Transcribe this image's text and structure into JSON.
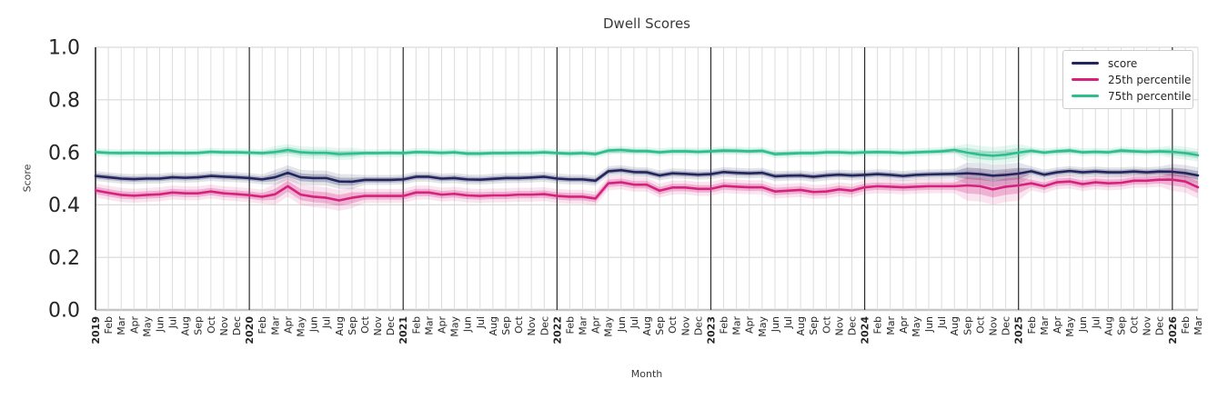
{
  "figure": {
    "title": "Dwell Scores",
    "xlabel": "Month",
    "ylabel": "Score"
  },
  "chart_data": {
    "type": "line",
    "title": "Dwell Scores",
    "xlabel": "Month",
    "ylabel": "Score",
    "ylim": [
      0.0,
      1.0
    ],
    "yticks": [
      0.0,
      0.2,
      0.4,
      0.6,
      0.8,
      1.0
    ],
    "ytick_labels": [
      "0.0",
      "0.2",
      "0.4",
      "0.6",
      "0.8",
      "1.0"
    ],
    "grid": true,
    "legend_position": "upper right",
    "x_tick_labels": [
      "2019",
      "Feb",
      "Mar",
      "Apr",
      "May",
      "Jun",
      "Jul",
      "Aug",
      "Sep",
      "Oct",
      "Nov",
      "Dec",
      "2020",
      "Feb",
      "Mar",
      "Apr",
      "May",
      "Jun",
      "Jul",
      "Aug",
      "Sep",
      "Oct",
      "Nov",
      "Dec",
      "2021",
      "Feb",
      "Mar",
      "Apr",
      "May",
      "Jun",
      "Jul",
      "Aug",
      "Sep",
      "Oct",
      "Nov",
      "Dec",
      "2022",
      "Feb",
      "Mar",
      "Apr",
      "May",
      "Jun",
      "Jul",
      "Aug",
      "Sep",
      "Oct",
      "Nov",
      "Dec",
      "2023",
      "Feb",
      "Mar",
      "Apr",
      "May",
      "Jun",
      "Jul",
      "Aug",
      "Sep",
      "Oct",
      "Nov",
      "Dec",
      "2024",
      "Feb",
      "Mar",
      "Apr",
      "May",
      "Jun",
      "Jul",
      "Aug",
      "Sep",
      "Oct",
      "Nov",
      "Dec",
      "2025",
      "Feb",
      "Mar",
      "Apr",
      "May",
      "Jun",
      "Jul",
      "Aug",
      "Sep",
      "Oct",
      "Nov",
      "Dec",
      "2026",
      "Feb",
      "Mar"
    ],
    "year_tick_indices": [
      0,
      12,
      24,
      36,
      48,
      60,
      72,
      84
    ],
    "series": [
      {
        "name": "score",
        "color": "#22265c",
        "band_halfwidth": 0.01,
        "values": [
          0.51,
          0.505,
          0.5,
          0.498,
          0.5,
          0.5,
          0.505,
          0.503,
          0.505,
          0.51,
          0.507,
          0.505,
          0.502,
          0.497,
          0.505,
          0.522,
          0.505,
          0.502,
          0.502,
          0.489,
          0.488,
          0.495,
          0.495,
          0.495,
          0.497,
          0.507,
          0.507,
          0.5,
          0.502,
          0.497,
          0.496,
          0.499,
          0.502,
          0.502,
          0.504,
          0.507,
          0.5,
          0.497,
          0.497,
          0.492,
          0.528,
          0.532,
          0.525,
          0.524,
          0.512,
          0.52,
          0.518,
          0.515,
          0.517,
          0.525,
          0.522,
          0.52,
          0.522,
          0.509,
          0.511,
          0.512,
          0.507,
          0.512,
          0.515,
          0.512,
          0.514,
          0.517,
          0.514,
          0.51,
          0.514,
          0.516,
          0.517,
          0.518,
          0.52,
          0.517,
          0.511,
          0.514,
          0.519,
          0.528,
          0.515,
          0.524,
          0.529,
          0.524,
          0.527,
          0.524,
          0.524,
          0.527,
          0.524,
          0.527,
          0.526,
          0.521,
          0.512
        ]
      },
      {
        "name": "25th percentile",
        "color": "#d6217e",
        "band_halfwidth": 0.014,
        "values": [
          0.455,
          0.446,
          0.438,
          0.435,
          0.438,
          0.44,
          0.447,
          0.444,
          0.444,
          0.451,
          0.444,
          0.441,
          0.437,
          0.431,
          0.44,
          0.471,
          0.439,
          0.431,
          0.427,
          0.417,
          0.427,
          0.434,
          0.434,
          0.434,
          0.434,
          0.447,
          0.447,
          0.439,
          0.442,
          0.436,
          0.434,
          0.436,
          0.436,
          0.439,
          0.439,
          0.441,
          0.434,
          0.431,
          0.431,
          0.424,
          0.482,
          0.486,
          0.477,
          0.477,
          0.454,
          0.466,
          0.466,
          0.461,
          0.461,
          0.472,
          0.469,
          0.467,
          0.467,
          0.451,
          0.454,
          0.457,
          0.449,
          0.451,
          0.459,
          0.454,
          0.467,
          0.471,
          0.469,
          0.467,
          0.469,
          0.471,
          0.471,
          0.471,
          0.474,
          0.471,
          0.459,
          0.469,
          0.474,
          0.482,
          0.471,
          0.486,
          0.489,
          0.479,
          0.486,
          0.482,
          0.484,
          0.492,
          0.492,
          0.496,
          0.496,
          0.489,
          0.467
        ]
      },
      {
        "name": "75th percentile",
        "color": "#2dbd8e",
        "band_halfwidth": 0.008,
        "values": [
          0.601,
          0.598,
          0.597,
          0.598,
          0.597,
          0.597,
          0.598,
          0.597,
          0.598,
          0.602,
          0.6,
          0.6,
          0.599,
          0.597,
          0.601,
          0.609,
          0.6,
          0.598,
          0.598,
          0.593,
          0.595,
          0.597,
          0.597,
          0.598,
          0.597,
          0.601,
          0.6,
          0.598,
          0.6,
          0.595,
          0.595,
          0.597,
          0.597,
          0.598,
          0.598,
          0.6,
          0.597,
          0.595,
          0.597,
          0.593,
          0.607,
          0.609,
          0.605,
          0.605,
          0.6,
          0.604,
          0.604,
          0.602,
          0.604,
          0.607,
          0.606,
          0.604,
          0.606,
          0.593,
          0.595,
          0.597,
          0.597,
          0.6,
          0.6,
          0.598,
          0.6,
          0.601,
          0.6,
          0.598,
          0.6,
          0.602,
          0.604,
          0.609,
          0.599,
          0.591,
          0.587,
          0.591,
          0.599,
          0.606,
          0.599,
          0.604,
          0.607,
          0.6,
          0.602,
          0.6,
          0.607,
          0.604,
          0.602,
          0.604,
          0.602,
          0.597,
          0.589
        ]
      }
    ],
    "band_wide_ranges": [
      {
        "start": 14,
        "end": 20,
        "scale": 1.5
      },
      {
        "start": 68,
        "end": 72,
        "scale": 2.2
      },
      {
        "start": 84,
        "end": 86,
        "scale": 1.6
      }
    ],
    "colors": {
      "grid_minor": "#dcdcdc",
      "grid_major": "#d9d9d9",
      "zero_line": "#c6c6c6",
      "year_line": "#2b2b2b",
      "spine": "#2b2b2b",
      "tick_text": "#262626",
      "label_text": "#3a3a3a"
    }
  }
}
